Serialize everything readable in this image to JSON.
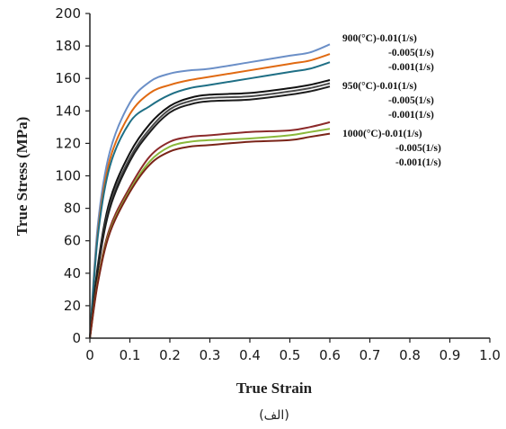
{
  "caption": "(الف)",
  "chart_data": {
    "type": "line",
    "xlabel": "True Strain",
    "ylabel": "True Stress (MPa)",
    "xlim": [
      0,
      1.0
    ],
    "ylim": [
      0,
      200
    ],
    "xticks": [
      "0",
      "0.1",
      "0.2",
      "0.3",
      "0.4",
      "0.5",
      "0.6",
      "0.7",
      "0.8",
      "0.9",
      "1.0"
    ],
    "yticks": [
      "0",
      "20",
      "40",
      "60",
      "80",
      "100",
      "120",
      "140",
      "160",
      "180",
      "200"
    ],
    "grid": false,
    "legend_position": "right",
    "legend_labels": [
      "900(°C)-0.01(1/s)",
      "-0.005(1/s)",
      "-0.001(1/s)",
      "950(°C)-0.01(1/s)",
      "-0.005(1/s)",
      "-0.001(1/s)",
      "1000(°C)-0.01(1/s)",
      "-0.005(1/s)",
      "-0.001(1/s)"
    ],
    "series": [
      {
        "color": "#6b8fc7",
        "x": [
          0,
          0.02,
          0.05,
          0.1,
          0.15,
          0.2,
          0.25,
          0.3,
          0.4,
          0.5,
          0.55,
          0.6
        ],
        "y": [
          0,
          70,
          115,
          145,
          158,
          163,
          165,
          166,
          170,
          174,
          176,
          181
        ]
      },
      {
        "color": "#e06a12",
        "x": [
          0,
          0.02,
          0.05,
          0.1,
          0.15,
          0.2,
          0.25,
          0.3,
          0.4,
          0.5,
          0.55,
          0.6
        ],
        "y": [
          0,
          65,
          110,
          138,
          151,
          156,
          159,
          161,
          165,
          169,
          171,
          175
        ]
      },
      {
        "color": "#1f6f85",
        "x": [
          0,
          0.02,
          0.05,
          0.1,
          0.15,
          0.2,
          0.25,
          0.3,
          0.4,
          0.5,
          0.55,
          0.6
        ],
        "y": [
          0,
          63,
          106,
          133,
          143,
          150,
          154,
          156,
          160,
          164,
          166,
          170
        ]
      },
      {
        "color": "#111111",
        "x": [
          0,
          0.02,
          0.05,
          0.1,
          0.15,
          0.2,
          0.25,
          0.3,
          0.4,
          0.5,
          0.55,
          0.6
        ],
        "y": [
          0,
          45,
          85,
          114,
          132,
          143,
          148,
          150,
          151,
          154,
          156,
          159
        ]
      },
      {
        "color": "#4a4a4a",
        "x": [
          0,
          0.02,
          0.05,
          0.1,
          0.15,
          0.2,
          0.25,
          0.3,
          0.4,
          0.5,
          0.55,
          0.6
        ],
        "y": [
          0,
          43,
          82,
          111,
          129,
          141,
          146,
          148,
          149,
          152,
          154,
          157
        ]
      },
      {
        "color": "#1d1d1d",
        "x": [
          0,
          0.02,
          0.05,
          0.1,
          0.15,
          0.2,
          0.25,
          0.3,
          0.4,
          0.5,
          0.55,
          0.6
        ],
        "y": [
          0,
          42,
          80,
          109,
          127,
          139,
          144,
          146,
          147,
          150,
          152,
          155
        ]
      },
      {
        "color": "#8b2a2a",
        "x": [
          0,
          0.02,
          0.05,
          0.1,
          0.15,
          0.2,
          0.25,
          0.3,
          0.4,
          0.5,
          0.55,
          0.6
        ],
        "y": [
          0,
          36,
          68,
          93,
          112,
          121,
          124,
          125,
          127,
          128,
          130,
          133
        ]
      },
      {
        "color": "#8ab83a",
        "x": [
          0,
          0.02,
          0.05,
          0.1,
          0.15,
          0.2,
          0.25,
          0.3,
          0.4,
          0.5,
          0.55,
          0.6
        ],
        "y": [
          0,
          35,
          66,
          91,
          109,
          118,
          121,
          122,
          123,
          125,
          127,
          129
        ]
      },
      {
        "color": "#7a2418",
        "x": [
          0,
          0.02,
          0.05,
          0.1,
          0.15,
          0.2,
          0.25,
          0.3,
          0.4,
          0.5,
          0.55,
          0.6
        ],
        "y": [
          0,
          34,
          65,
          90,
          107,
          115,
          118,
          119,
          121,
          122,
          124,
          126
        ]
      }
    ]
  }
}
